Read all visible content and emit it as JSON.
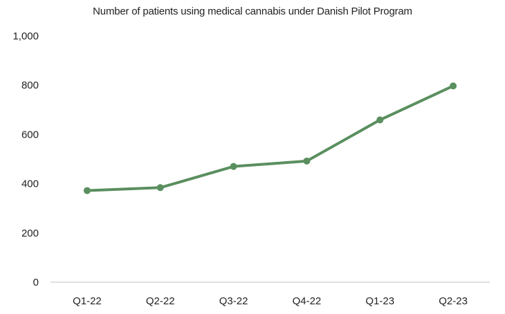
{
  "chart_data": {
    "type": "line",
    "title": "Number of patients using medical cannabis under Danish Pilot Program",
    "xlabel": "",
    "ylabel": "",
    "categories": [
      "Q1-22",
      "Q2-22",
      "Q3-22",
      "Q4-22",
      "Q1-23",
      "Q2-23"
    ],
    "series": [
      {
        "values": [
          372,
          384,
          470,
          492,
          659,
          797
        ]
      }
    ],
    "ylim": [
      0,
      1000
    ],
    "yticks": [
      0,
      200,
      400,
      600,
      800,
      1000
    ],
    "ytick_labels": [
      "0",
      "200",
      "400",
      "600",
      "800",
      "1,000"
    ],
    "grid": false,
    "legend": "none",
    "line_color": "#5a8f5f",
    "axis_color": "#bfbfbf"
  }
}
